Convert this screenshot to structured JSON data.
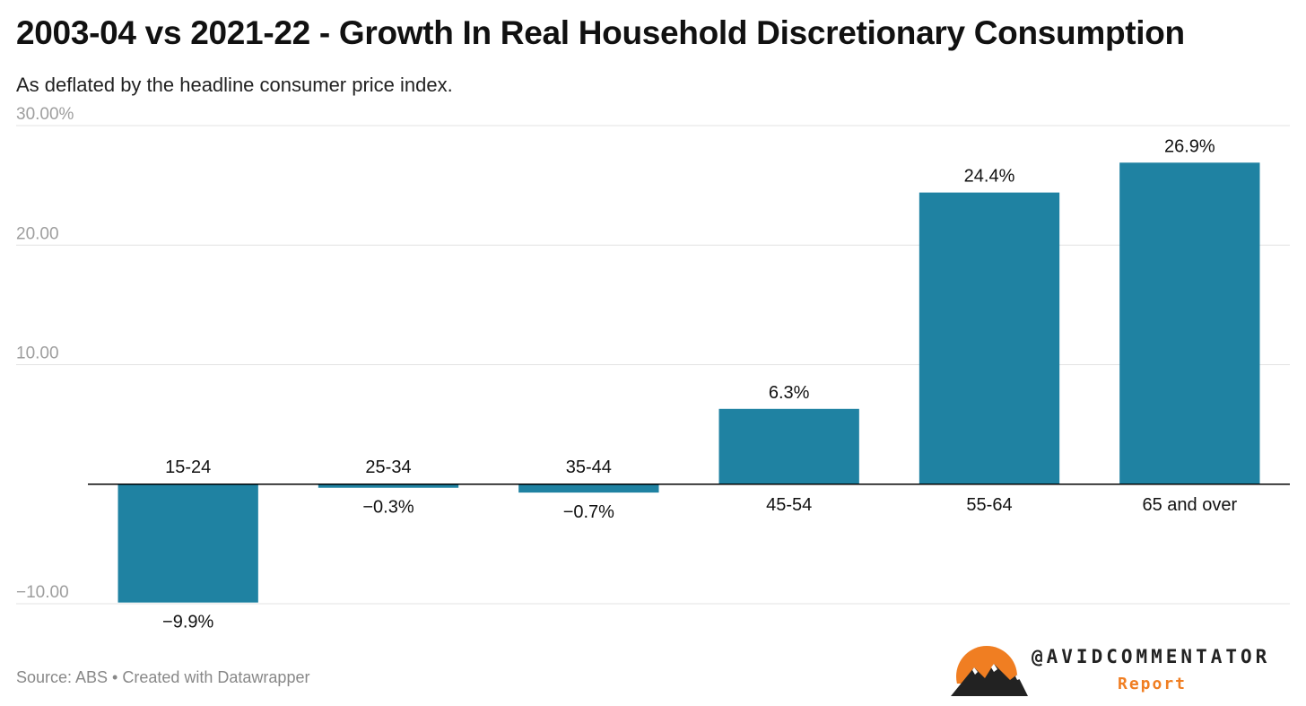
{
  "header": {
    "title": "2003-04 vs 2021-22 - Growth In Real Household Discretionary Consumption",
    "subtitle": "As deflated by the headline consumer price index."
  },
  "footer": {
    "source": "Source: ABS • Created with Datawrapper"
  },
  "logo": {
    "handle": "@AVIDCOMMENTATOR",
    "report": "Report",
    "icon": "mountain-sun-icon"
  },
  "colors": {
    "bar": "#1f82a2",
    "grid": "#e3e3e3",
    "axis_zero": "#000000",
    "tick_text": "#9e9e9e",
    "label_text": "#111111",
    "logo_orange": "#f07e22"
  },
  "chart_data": {
    "type": "bar",
    "title": "2003-04 vs 2021-22 - Growth In Real Household Discretionary Consumption",
    "subtitle": "As deflated by the headline consumer price index.",
    "categories": [
      "15-24",
      "25-34",
      "35-44",
      "45-54",
      "55-64",
      "65 and over"
    ],
    "values": [
      -9.9,
      -0.3,
      -0.7,
      6.3,
      24.4,
      26.9
    ],
    "value_labels": [
      "−9.9%",
      "−0.3%",
      "−0.7%",
      "6.3%",
      "24.4%",
      "26.9%"
    ],
    "ylim": [
      -10,
      30
    ],
    "yticks": [
      {
        "value": 30,
        "label": "30.00%"
      },
      {
        "value": 20,
        "label": "20.00"
      },
      {
        "value": 10,
        "label": "10.00"
      },
      {
        "value": -10,
        "label": "−10.00"
      }
    ],
    "grid": true,
    "xlabel": "",
    "ylabel": ""
  }
}
